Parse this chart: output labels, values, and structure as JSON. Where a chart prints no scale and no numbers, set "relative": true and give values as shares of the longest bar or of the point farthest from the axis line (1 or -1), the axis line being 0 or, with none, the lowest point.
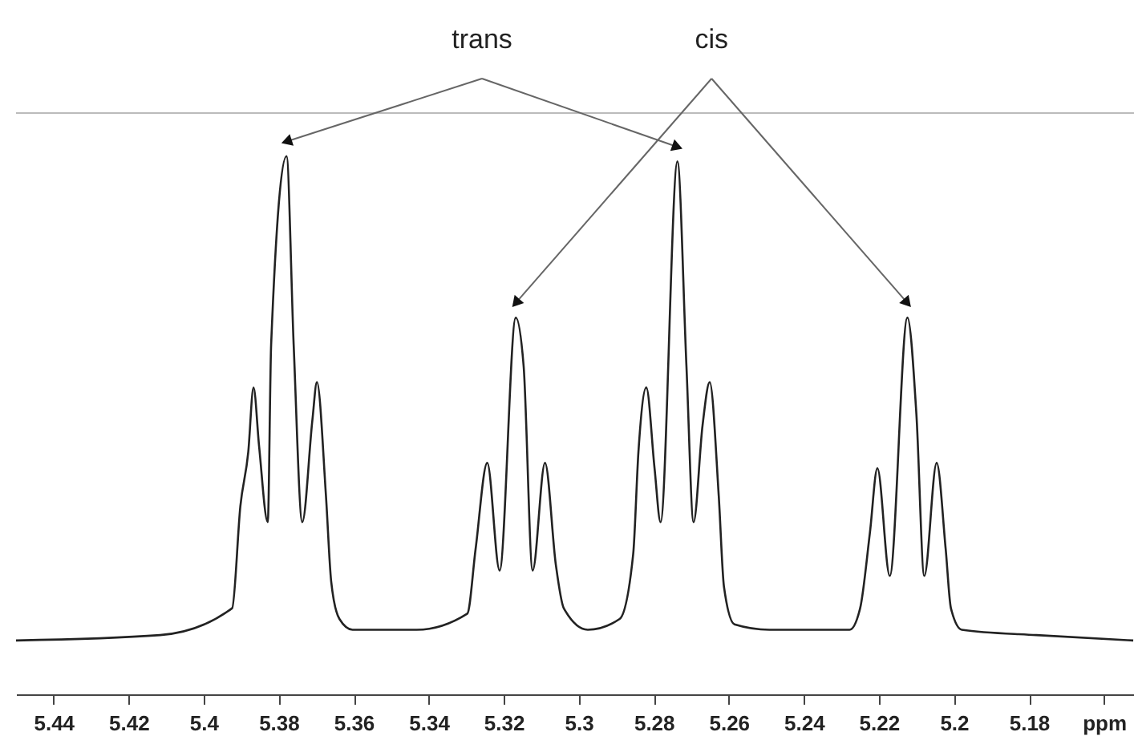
{
  "chart_data": {
    "type": "line",
    "relative": true,
    "annotations": [
      "trans",
      "cis"
    ],
    "x": [
      5.45,
      5.4116,
      5.3924,
      5.3902,
      5.3881,
      5.3867,
      5.3852,
      5.3829,
      5.382,
      5.3779,
      5.376,
      5.3737,
      5.371,
      5.3698,
      5.3674,
      5.366,
      5.3638,
      5.3603,
      5.3432,
      5.3297,
      5.3275,
      5.3244,
      5.3211,
      5.3168,
      5.3147,
      5.3123,
      5.309,
      5.3061,
      5.304,
      5.2976,
      5.2891,
      5.2855,
      5.2841,
      5.282,
      5.2798,
      5.2782,
      5.2737,
      5.2713,
      5.2694,
      5.267,
      5.2651,
      5.2627,
      5.2613,
      5.2585,
      5.2492,
      5.2278,
      5.225,
      5.2224,
      5.2204,
      5.2171,
      5.2124,
      5.21,
      5.2079,
      5.2046,
      5.2022,
      5.2008,
      5.1979,
      5.178,
      5.1522
    ],
    "series": [
      {
        "color": "#222222",
        "values": [
          0.1,
          0.11,
          0.16,
          0.35,
          0.45,
          0.57,
          0.46,
          0.32,
          0.65,
          1.0,
          0.65,
          0.32,
          0.51,
          0.58,
          0.37,
          0.21,
          0.14,
          0.12,
          0.12,
          0.15,
          0.27,
          0.43,
          0.23,
          0.7,
          0.61,
          0.23,
          0.43,
          0.24,
          0.16,
          0.12,
          0.14,
          0.26,
          0.45,
          0.57,
          0.42,
          0.32,
          0.99,
          0.61,
          0.32,
          0.5,
          0.58,
          0.37,
          0.2,
          0.13,
          0.12,
          0.12,
          0.16,
          0.3,
          0.42,
          0.22,
          0.7,
          0.52,
          0.22,
          0.43,
          0.27,
          0.16,
          0.12,
          0.11,
          0.1
        ]
      }
    ],
    "xlim": [
      5.45,
      5.152
    ],
    "xticks": [
      5.44,
      5.42,
      5.4,
      5.38,
      5.36,
      5.34,
      5.32,
      5.3,
      5.28,
      5.26,
      5.24,
      5.22,
      5.2,
      5.18,
      {
        "value": 5.16,
        "label": "ppm"
      }
    ],
    "ref_lines": [
      {
        "axis": "y",
        "value": 1.08,
        "color": "#bbbbbb"
      }
    ],
    "grid": false,
    "marker": "none",
    "line_style": "solid"
  }
}
